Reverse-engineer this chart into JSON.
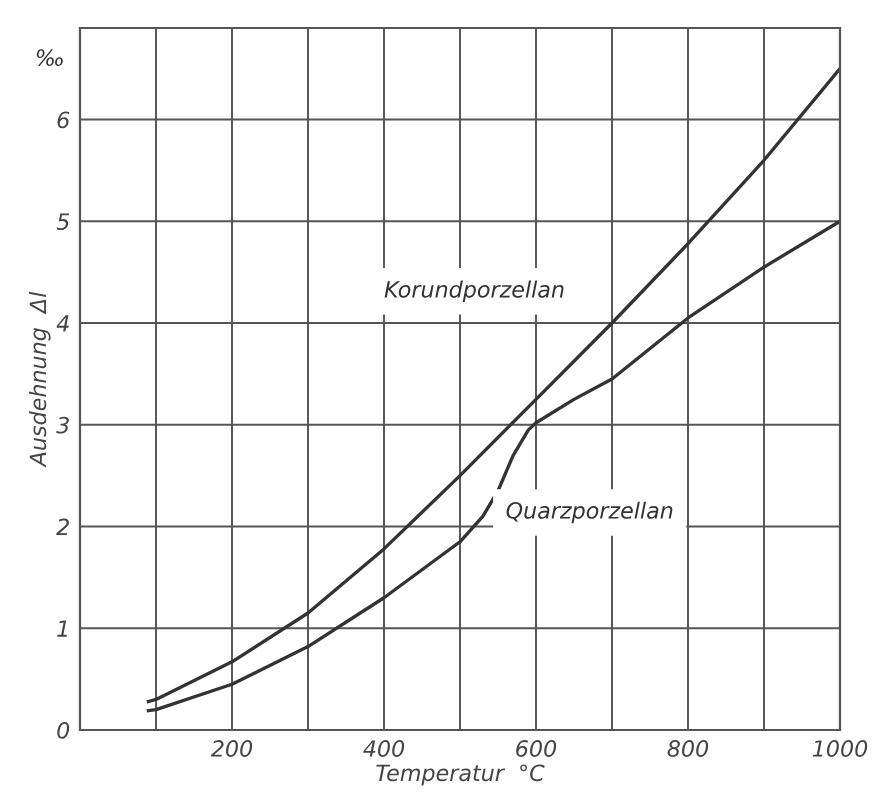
{
  "chart_data": {
    "type": "line",
    "xlabel": "Temperatur  °C",
    "ylabel": "Ausdehnung  Δl",
    "xlim": [
      0,
      1000
    ],
    "ylim": [
      0,
      6.9
    ],
    "xticks": [
      {
        "value": 100,
        "label": null
      },
      200,
      {
        "value": 300,
        "label": null
      },
      400,
      {
        "value": 500,
        "label": null
      },
      600,
      {
        "value": 700,
        "label": null
      },
      800,
      {
        "value": 900,
        "label": null
      },
      1000
    ],
    "yticks": [
      0,
      1,
      2,
      3,
      4,
      5,
      6
    ],
    "grid": true,
    "marker": "none",
    "line_style": "solid",
    "series": [
      {
        "color": "#333333",
        "x": [
          90,
          100,
          200,
          300,
          400,
          500,
          600,
          700,
          800,
          900,
          1000
        ],
        "values": [
          0.28,
          0.3,
          0.67,
          1.15,
          1.78,
          2.5,
          3.25,
          4.0,
          4.78,
          5.6,
          6.5
        ]
      },
      {
        "color": "#333333",
        "x": [
          90,
          100,
          200,
          300,
          400,
          500,
          530,
          550,
          570,
          590,
          600,
          650,
          700,
          800,
          900,
          1000
        ],
        "values": [
          0.19,
          0.2,
          0.45,
          0.82,
          1.3,
          1.85,
          2.1,
          2.35,
          2.7,
          2.95,
          3.02,
          3.25,
          3.45,
          4.05,
          4.55,
          5.0
        ]
      }
    ],
    "annotations": [
      "Korundporzellan",
      "Quarzporzellan",
      "‰"
    ]
  }
}
